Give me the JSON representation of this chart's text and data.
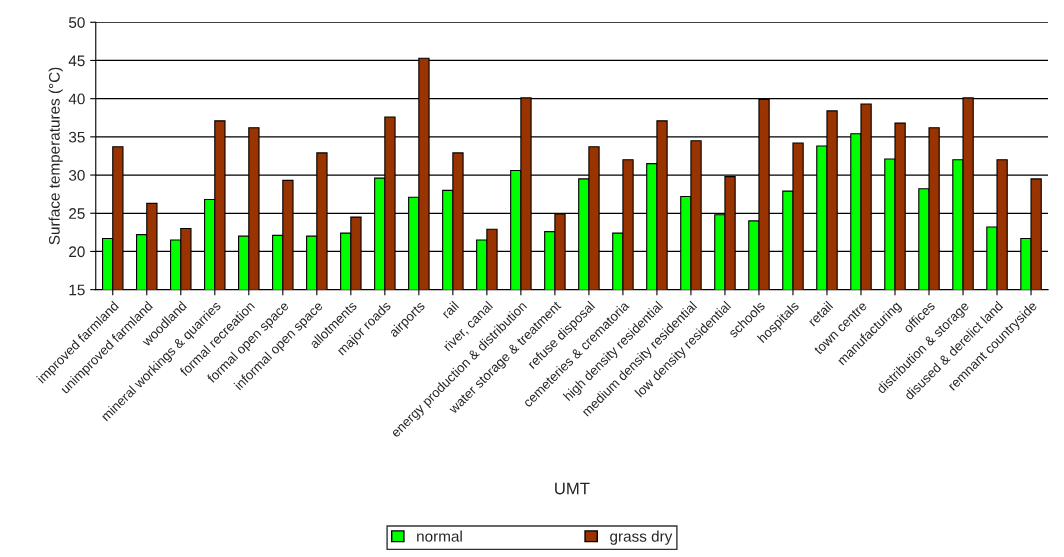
{
  "chart_data": {
    "type": "bar",
    "xlabel": "UMT",
    "ylabel": "Surface temperatures (°C)",
    "categories": [
      "improved farmland",
      "unimproved farmland",
      "woodland",
      "mineral workings & quarries",
      "formal recreation",
      "formal open space",
      "informal open space",
      "allotments",
      "major roads",
      "airports",
      "rail",
      "river, canal",
      "energy production & distribution",
      "water storage & treatment",
      "refuse disposal",
      "cemeteries & crematoria",
      "high density residential",
      "medium density residential",
      "low density residential",
      "schools",
      "hospitals",
      "retail",
      "town centre",
      "manufacturing",
      "offices",
      "distribution & storage",
      "disused & derelict land",
      "remnant countryside"
    ],
    "series": [
      {
        "name": "normal",
        "color": "#00ff00",
        "values": [
          21.7,
          22.2,
          21.5,
          26.8,
          22.0,
          22.1,
          22.0,
          22.4,
          29.6,
          27.1,
          28.0,
          21.5,
          30.6,
          22.6,
          29.5,
          22.4,
          31.5,
          27.2,
          24.8,
          24.0,
          27.9,
          33.8,
          35.4,
          32.1,
          28.2,
          32.0,
          23.2,
          21.7
        ]
      },
      {
        "name": "grass dry",
        "color": "#993300",
        "values": [
          33.7,
          26.3,
          23.0,
          37.1,
          36.2,
          29.3,
          32.9,
          24.5,
          37.6,
          45.3,
          32.9,
          22.9,
          40.1,
          24.9,
          33.7,
          32.0,
          37.1,
          34.5,
          29.8,
          39.9,
          34.2,
          38.4,
          39.3,
          36.8,
          36.2,
          40.1,
          32.0,
          29.5
        ]
      }
    ],
    "ylim": [
      15,
      50
    ],
    "yticks": [
      15,
      20,
      25,
      30,
      35,
      40,
      45,
      50
    ],
    "grid": "y",
    "legend": "bottom"
  }
}
